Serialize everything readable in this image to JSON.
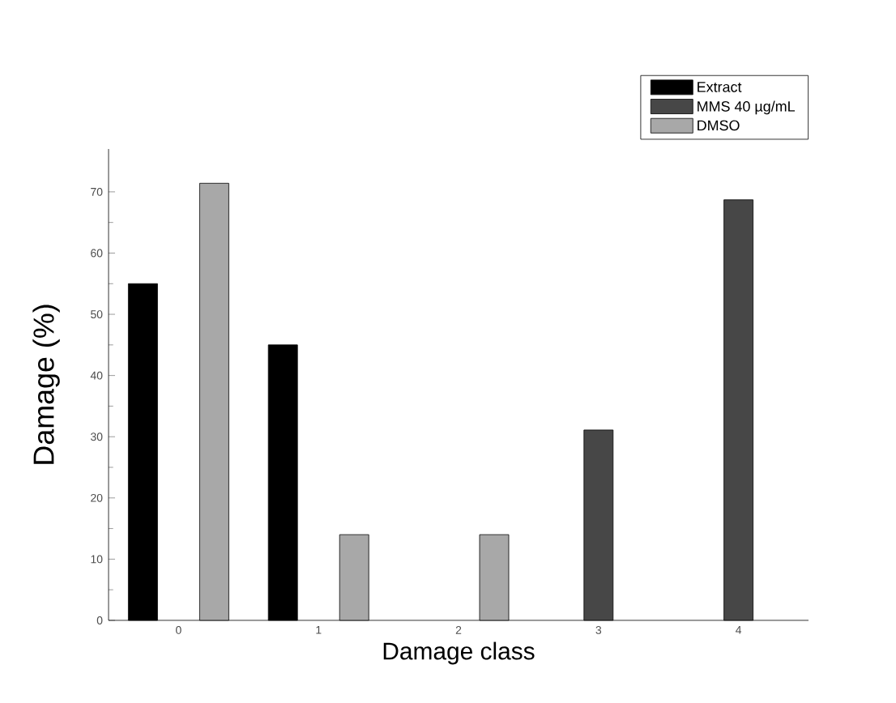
{
  "chart_data": {
    "type": "bar",
    "xlabel": "Damage class",
    "ylabel": "Damage (%)",
    "categories": [
      "0",
      "1",
      "2",
      "3",
      "4"
    ],
    "series": [
      {
        "name": "Extract",
        "color": "#000000",
        "values": [
          55,
          45,
          null,
          null,
          null
        ]
      },
      {
        "name": "MMS 40 µg/mL",
        "color": "#474747",
        "values": [
          null,
          null,
          null,
          31.1,
          68.7
        ]
      },
      {
        "name": "DMSO",
        "color": "#a8a8a8",
        "values": [
          71.4,
          14,
          14,
          null,
          null
        ]
      }
    ],
    "ylim": [
      0,
      77
    ],
    "yticks": [
      0,
      10,
      20,
      30,
      40,
      50,
      60,
      70
    ],
    "legend": "top right",
    "grid": false
  }
}
